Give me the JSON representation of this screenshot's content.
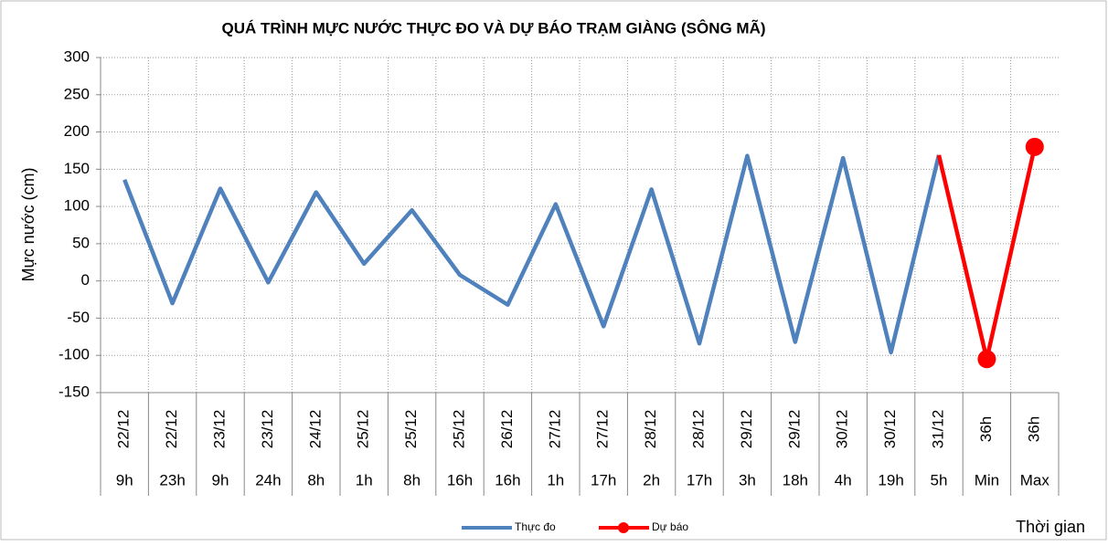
{
  "chart_data": {
    "type": "line",
    "title": "QUÁ TRÌNH MỰC NƯỚC THỰC ĐO VÀ DỰ BÁO TRẠM  GIÀNG (SÔNG MÃ)",
    "y_label": "Mực nước (cm)",
    "x_label": "Thời gian",
    "categories": [
      [
        "22/12",
        "9h"
      ],
      [
        "22/12",
        "23h"
      ],
      [
        "23/12",
        "9h"
      ],
      [
        "23/12",
        "24h"
      ],
      [
        "24/12",
        "8h"
      ],
      [
        "25/12",
        "1h"
      ],
      [
        "25/12",
        "8h"
      ],
      [
        "25/12",
        "16h"
      ],
      [
        "26/12",
        "16h"
      ],
      [
        "27/12",
        "1h"
      ],
      [
        "27/12",
        "17h"
      ],
      [
        "28/12",
        "2h"
      ],
      [
        "28/12",
        "17h"
      ],
      [
        "29/12",
        "3h"
      ],
      [
        "29/12",
        "18h"
      ],
      [
        "30/12",
        "4h"
      ],
      [
        "30/12",
        "19h"
      ],
      [
        "31/12",
        "5h"
      ],
      [
        "36h",
        "Min"
      ],
      [
        "36h",
        "Max"
      ]
    ],
    "series": [
      {
        "name": "Thực đo",
        "color": "#4f81bd",
        "values": [
          136,
          -30,
          124,
          -2,
          119,
          23,
          95,
          8,
          -32,
          103,
          -61,
          123,
          -84,
          168,
          -82,
          165,
          -96,
          169,
          null,
          null
        ]
      },
      {
        "name": "Dự báo",
        "color": "#ff0000",
        "values": [
          null,
          null,
          null,
          null,
          null,
          null,
          null,
          null,
          null,
          null,
          null,
          null,
          null,
          null,
          null,
          null,
          null,
          169,
          -105,
          180
        ]
      }
    ],
    "ylim": [
      -150,
      300
    ],
    "yticks": [
      -150,
      -100,
      -50,
      0,
      50,
      100,
      150,
      200,
      250,
      300
    ],
    "grid": true,
    "legend": "bottom"
  }
}
